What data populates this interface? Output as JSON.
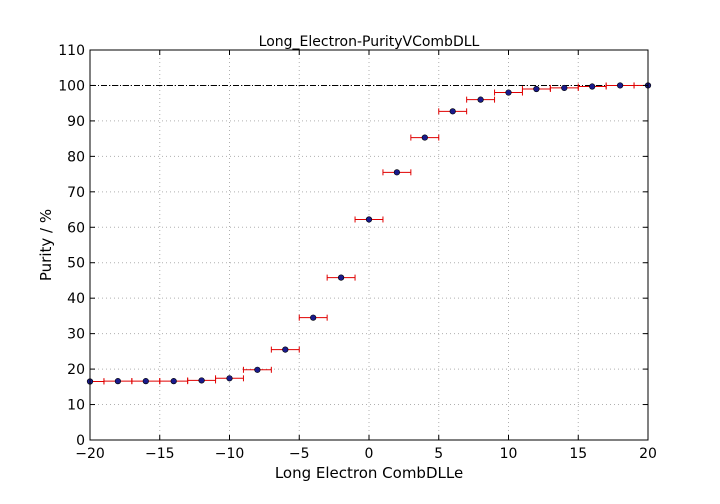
{
  "chart_data": {
    "type": "scatter",
    "title": "Long_Electron-PurityVCombDLL",
    "xlabel": "Long Electron CombDLLe",
    "ylabel": "Purity / %",
    "xlim": [
      -20,
      20
    ],
    "ylim": [
      0,
      110
    ],
    "xticks": [
      -20,
      -15,
      -10,
      -5,
      0,
      5,
      10,
      15,
      20
    ],
    "yticks": [
      0,
      10,
      20,
      30,
      40,
      50,
      60,
      70,
      80,
      90,
      100,
      110
    ],
    "xtick_labels": [
      "−20",
      "−15",
      "−10",
      "−5",
      "0",
      "5",
      "10",
      "15",
      "20"
    ],
    "ytick_labels": [
      "0",
      "10",
      "20",
      "30",
      "40",
      "50",
      "60",
      "70",
      "80",
      "90",
      "100",
      "110"
    ],
    "grid": true,
    "reference_line": 100,
    "x_error": 1,
    "points": [
      {
        "x": -20,
        "y": 16.5
      },
      {
        "x": -18,
        "y": 16.6
      },
      {
        "x": -16,
        "y": 16.6
      },
      {
        "x": -14,
        "y": 16.6
      },
      {
        "x": -12,
        "y": 16.8
      },
      {
        "x": -10,
        "y": 17.4
      },
      {
        "x": -8,
        "y": 19.8
      },
      {
        "x": -6,
        "y": 25.5
      },
      {
        "x": -4,
        "y": 34.5
      },
      {
        "x": -2,
        "y": 45.8
      },
      {
        "x": 0,
        "y": 62.2
      },
      {
        "x": 2,
        "y": 75.5
      },
      {
        "x": 4,
        "y": 85.3
      },
      {
        "x": 6,
        "y": 92.7
      },
      {
        "x": 8,
        "y": 96.0
      },
      {
        "x": 10,
        "y": 98.0
      },
      {
        "x": 12,
        "y": 99.0
      },
      {
        "x": 14,
        "y": 99.3
      },
      {
        "x": 16,
        "y": 99.7
      },
      {
        "x": 18,
        "y": 100.0
      },
      {
        "x": 20,
        "y": 100.0
      }
    ],
    "colors": {
      "marker": "#1a1a8c",
      "error_bar": "#e00000",
      "grid": "#b0b0b0",
      "reference_line": "#000000"
    }
  }
}
